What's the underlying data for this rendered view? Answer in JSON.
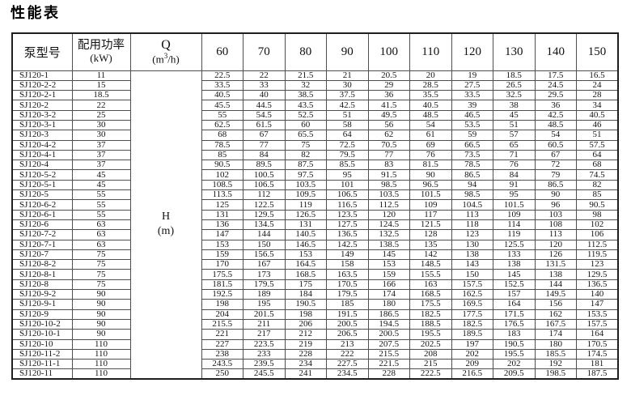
{
  "title": "性能表",
  "table": {
    "header": {
      "model": "泵型号",
      "power_line1": "配用功率",
      "power_line2": "(kW)",
      "q_symbol": "Q",
      "q_unit_pre": "(m",
      "q_unit_sup": "3",
      "q_unit_post": "/h)",
      "flow_columns": [
        "60",
        "70",
        "80",
        "90",
        "100",
        "110",
        "120",
        "130",
        "140",
        "150"
      ]
    },
    "h_label_line1": "H",
    "h_label_line2": "(m)",
    "rows": [
      {
        "model": "SJ120-1",
        "power": "11",
        "values": [
          "22.5",
          "22",
          "21.5",
          "21",
          "20.5",
          "20",
          "19",
          "18.5",
          "17.5",
          "16.5"
        ]
      },
      {
        "model": "SJ120-2-2",
        "power": "15",
        "values": [
          "33.5",
          "33",
          "32",
          "30",
          "29",
          "28.5",
          "27.5",
          "26.5",
          "24.5",
          "24"
        ]
      },
      {
        "model": "SJ120-2-1",
        "power": "18.5",
        "values": [
          "40.5",
          "40",
          "38.5",
          "37.5",
          "36",
          "35.5",
          "33.5",
          "32.5",
          "29.5",
          "28"
        ]
      },
      {
        "model": "SJ120-2",
        "power": "22",
        "values": [
          "45.5",
          "44.5",
          "43.5",
          "42.5",
          "41.5",
          "40.5",
          "39",
          "38",
          "36",
          "34"
        ]
      },
      {
        "model": "SJ120-3-2",
        "power": "25",
        "values": [
          "55",
          "54.5",
          "52.5",
          "51",
          "49.5",
          "48.5",
          "46.5",
          "45",
          "42.5",
          "40.5"
        ]
      },
      {
        "model": "SJ120-3-1",
        "power": "30",
        "values": [
          "62.5",
          "61.5",
          "60",
          "58",
          "56",
          "54",
          "53.5",
          "51",
          "48.5",
          "46"
        ]
      },
      {
        "model": "SJ120-3",
        "power": "30",
        "values": [
          "68",
          "67",
          "65.5",
          "64",
          "62",
          "61",
          "59",
          "57",
          "54",
          "51"
        ]
      },
      {
        "model": "SJ120-4-2",
        "power": "37",
        "values": [
          "78.5",
          "77",
          "75",
          "72.5",
          "70.5",
          "69",
          "66.5",
          "65",
          "60.5",
          "57.5"
        ]
      },
      {
        "model": "SJ120-4-1",
        "power": "37",
        "values": [
          "85",
          "84",
          "82",
          "79.5",
          "77",
          "76",
          "73.5",
          "71",
          "67",
          "64"
        ]
      },
      {
        "model": "SJ120-4",
        "power": "37",
        "values": [
          "90.5",
          "89.5",
          "87.5",
          "85.5",
          "83",
          "81.5",
          "78.5",
          "76",
          "72",
          "68"
        ]
      },
      {
        "model": "SJ120-5-2",
        "power": "45",
        "values": [
          "102",
          "100.5",
          "97.5",
          "95",
          "91.5",
          "90",
          "86.5",
          "84",
          "79",
          "74.5"
        ]
      },
      {
        "model": "SJ120-5-1",
        "power": "45",
        "values": [
          "108.5",
          "106.5",
          "103.5",
          "101",
          "98.5",
          "96.5",
          "94",
          "91",
          "86.5",
          "82"
        ]
      },
      {
        "model": "SJ120-5",
        "power": "55",
        "values": [
          "113.5",
          "112",
          "109.5",
          "106.5",
          "103.5",
          "101.5",
          "98.5",
          "95",
          "90",
          "85"
        ]
      },
      {
        "model": "SJ120-6-2",
        "power": "55",
        "values": [
          "125",
          "122.5",
          "119",
          "116.5",
          "112.5",
          "109",
          "104.5",
          "101.5",
          "96",
          "90.5"
        ]
      },
      {
        "model": "SJ120-6-1",
        "power": "55",
        "values": [
          "131",
          "129.5",
          "126.5",
          "123.5",
          "120",
          "117",
          "113",
          "109",
          "103",
          "98"
        ]
      },
      {
        "model": "SJ120-6",
        "power": "63",
        "values": [
          "136",
          "134.5",
          "131",
          "127.5",
          "124.5",
          "121.5",
          "118",
          "114",
          "108",
          "102"
        ]
      },
      {
        "model": "SJ120-7-2",
        "power": "63",
        "values": [
          "147",
          "144",
          "140.5",
          "136.5",
          "132.5",
          "128",
          "123",
          "119",
          "113",
          "106"
        ]
      },
      {
        "model": "SJ120-7-1",
        "power": "63",
        "values": [
          "153",
          "150",
          "146.5",
          "142.5",
          "138.5",
          "135",
          "130",
          "125.5",
          "120",
          "112.5"
        ]
      },
      {
        "model": "SJ120-7",
        "power": "75",
        "values": [
          "159",
          "156.5",
          "153",
          "149",
          "145",
          "142",
          "138",
          "133",
          "126",
          "119.5"
        ]
      },
      {
        "model": "SJ120-8-2",
        "power": "75",
        "values": [
          "170",
          "167",
          "164.5",
          "158",
          "153",
          "148.5",
          "143",
          "138",
          "131.5",
          "123"
        ]
      },
      {
        "model": "SJ120-8-1",
        "power": "75",
        "values": [
          "175.5",
          "173",
          "168.5",
          "163.5",
          "159",
          "155.5",
          "150",
          "145",
          "138",
          "129.5"
        ]
      },
      {
        "model": "SJ120-8",
        "power": "75",
        "values": [
          "181.5",
          "179.5",
          "175",
          "170.5",
          "166",
          "163",
          "157.5",
          "152.5",
          "144",
          "136.5"
        ]
      },
      {
        "model": "SJ120-9-2",
        "power": "90",
        "values": [
          "192.5",
          "189",
          "184",
          "179.5",
          "174",
          "168.5",
          "162.5",
          "157",
          "149.5",
          "140"
        ]
      },
      {
        "model": "SJ120-9-1",
        "power": "90",
        "values": [
          "198",
          "195",
          "190.5",
          "185",
          "180",
          "175.5",
          "169.5",
          "164",
          "156",
          "147"
        ]
      },
      {
        "model": "SJ120-9",
        "power": "90",
        "values": [
          "204",
          "201.5",
          "198",
          "191.5",
          "186.5",
          "182.5",
          "177.5",
          "171.5",
          "162",
          "153.5"
        ]
      },
      {
        "model": "SJ120-10-2",
        "power": "90",
        "values": [
          "215.5",
          "211",
          "206",
          "200.5",
          "194.5",
          "188.5",
          "182.5",
          "176.5",
          "167.5",
          "157.5"
        ]
      },
      {
        "model": "SJ120-10-1",
        "power": "90",
        "values": [
          "221",
          "217",
          "212",
          "206.5",
          "200.5",
          "195.5",
          "189.5",
          "183",
          "174",
          "164"
        ]
      },
      {
        "model": "SJ120-10",
        "power": "110",
        "values": [
          "227",
          "223.5",
          "219",
          "213",
          "207.5",
          "202.5",
          "197",
          "190.5",
          "180",
          "170.5"
        ]
      },
      {
        "model": "SJ120-11-2",
        "power": "110",
        "values": [
          "238",
          "233",
          "228",
          "222",
          "215.5",
          "208",
          "202",
          "195.5",
          "185.5",
          "174.5"
        ]
      },
      {
        "model": "SJ120-11-1",
        "power": "110",
        "values": [
          "243.5",
          "239.5",
          "234",
          "227.5",
          "221.5",
          "215",
          "209",
          "202",
          "192",
          "181"
        ]
      },
      {
        "model": "SJ120-11",
        "power": "110",
        "values": [
          "250",
          "245.5",
          "241",
          "234.5",
          "228",
          "222.5",
          "216.5",
          "209.5",
          "198.5",
          "187.5"
        ]
      }
    ]
  }
}
